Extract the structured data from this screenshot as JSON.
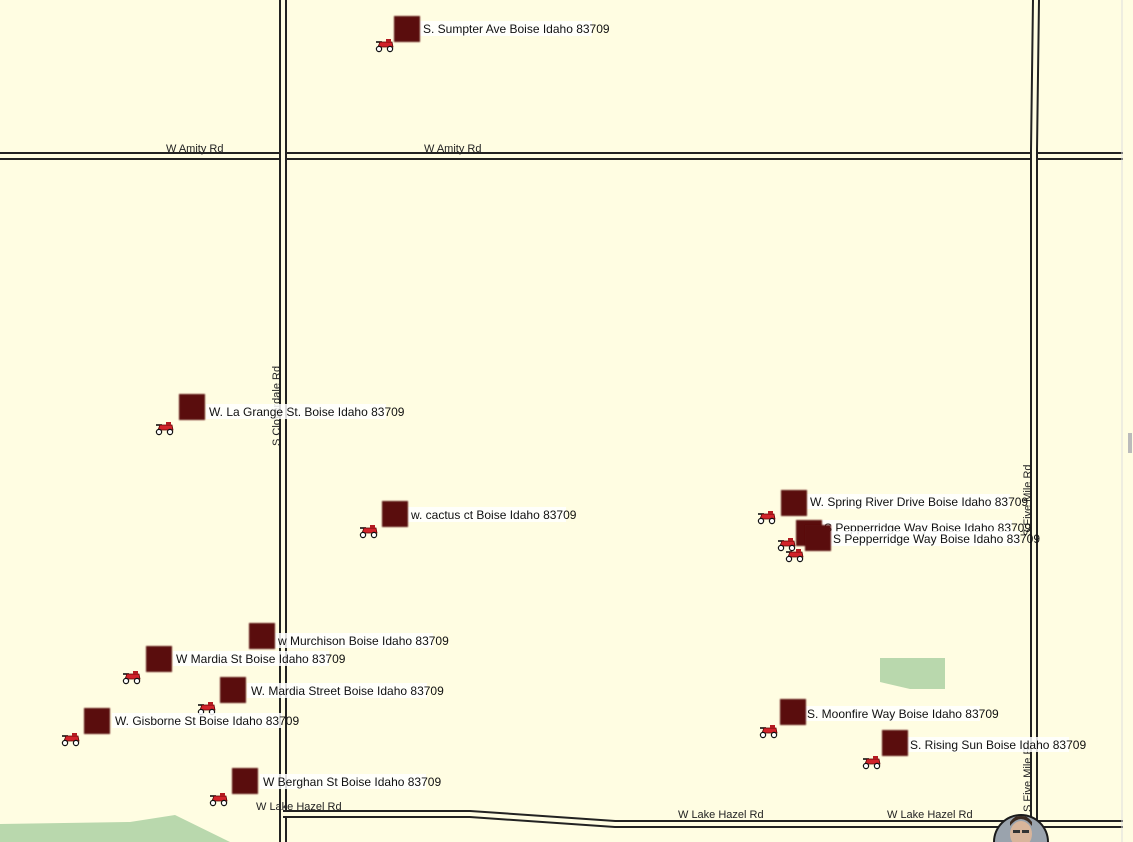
{
  "roads": {
    "w_amity_left": "W Amity Rd",
    "w_amity_mid": "W Amity Rd",
    "s_cloverdale": "S Cloverdale Rd",
    "s_five_mile_upper": "S Five Mile Rd",
    "s_five_mile_lower": "S Five Mile R",
    "w_lake_hazel_left": "W Lake Hazel Rd",
    "w_lake_hazel_mid": "W Lake Hazel Rd",
    "w_lake_hazel_right": "W Lake Hazel Rd"
  },
  "pins": [
    {
      "id": "sumpter",
      "label": "S. Sumpter Ave Boise Idaho 83709"
    },
    {
      "id": "la-grange",
      "label": "W. La Grange St. Boise Idaho 83709"
    },
    {
      "id": "cactus",
      "label": "w. cactus ct Boise Idaho 83709"
    },
    {
      "id": "spring-river",
      "label": "W. Spring River Drive Boise Idaho 83709"
    },
    {
      "id": "pepperridge-1",
      "label": "S Pepperridge Way Boise Idaho 83709"
    },
    {
      "id": "pepperridge-2",
      "label": "S Pepperridge Way Boise Idaho 83709"
    },
    {
      "id": "murchison",
      "label": "w Murchison Boise Idaho 83709"
    },
    {
      "id": "mardia-st",
      "label": "W Mardia St Boise Idaho 83709"
    },
    {
      "id": "mardia-street",
      "label": "W. Mardia Street Boise Idaho 83709"
    },
    {
      "id": "gisborne",
      "label": "W. Gisborne St Boise Idaho 83709"
    },
    {
      "id": "berghan",
      "label": "W Berghan St Boise Idaho 83709"
    },
    {
      "id": "moonfire",
      "label": "S. Moonfire Way Boise Idaho 83709"
    },
    {
      "id": "rising-sun",
      "label": "S. Rising Sun Boise Idaho 83709"
    }
  ],
  "colors": {
    "background": "#fffde2",
    "park": "#b9d8ad",
    "marker": "#5a0707",
    "road_casing": "#222222",
    "vehicle": "#d2232a"
  },
  "icons": {
    "pin_marker": "square-marker-icon",
    "vehicle": "mower-icon",
    "avatar": "user-avatar-icon"
  }
}
